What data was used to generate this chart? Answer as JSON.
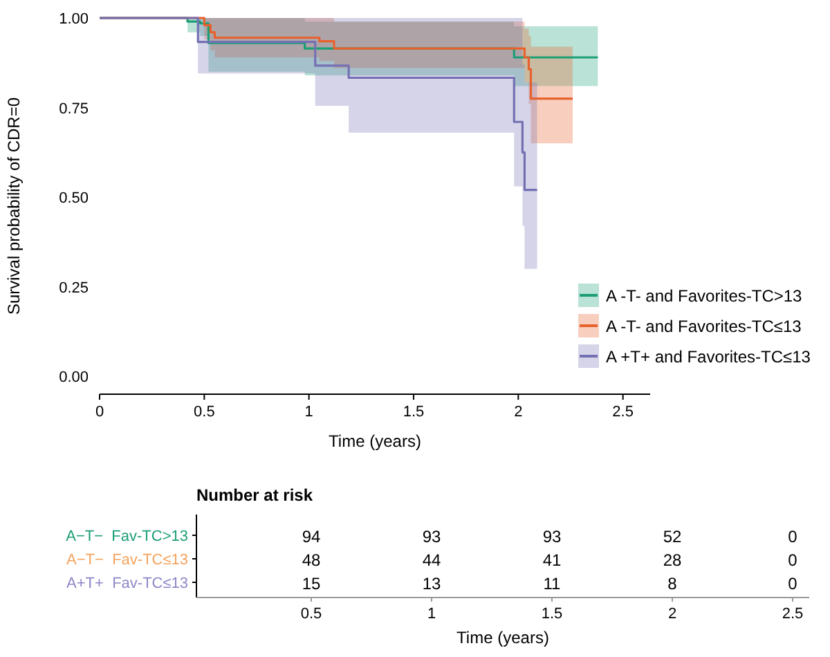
{
  "chart_data": [
    {
      "type": "step",
      "ylabel": "Survival probability of CDR=0",
      "xlabel": "Time (years)",
      "xlim": [
        0,
        2.63
      ],
      "ylim": [
        -0.05,
        1
      ],
      "xticks": [
        0,
        0.5,
        1,
        1.5,
        2,
        2.5
      ],
      "yticks": [
        {
          "value": 0,
          "label": "0.00"
        },
        {
          "value": 0.25,
          "label": "0.25"
        },
        {
          "value": 0.5,
          "label": "0.50"
        },
        {
          "value": 0.75,
          "label": "0.75"
        },
        {
          "value": 1,
          "label": "1.00"
        }
      ],
      "legend": "bottom right",
      "grid": false,
      "series": [
        {
          "name": "A -T- and Favorites-TC>13",
          "color": "#1b9e77",
          "x": [
            0,
            0.42,
            0.48,
            0.52,
            0.98,
            1.98,
            2.38
          ],
          "values": [
            1,
            0.99,
            0.985,
            0.93,
            0.915,
            0.89,
            0.89
          ],
          "lower": [
            1,
            0.96,
            0.95,
            0.85,
            0.84,
            0.81,
            0.81
          ],
          "upper": [
            1,
            1,
            1,
            1,
            0.99,
            0.977,
            0.977
          ]
        },
        {
          "name": "A -T- and Favorites-TC≤13",
          "color": "#e8612c",
          "x": [
            0,
            0.5,
            0.53,
            0.55,
            1.05,
            1.12,
            2.03,
            2.05,
            2.06,
            2.26
          ],
          "values": [
            1,
            0.98,
            0.96,
            0.945,
            0.935,
            0.915,
            0.89,
            0.857,
            0.775,
            0.775
          ],
          "lower": [
            1,
            0.94,
            0.91,
            0.89,
            0.88,
            0.86,
            0.82,
            0.76,
            0.65,
            0.65
          ],
          "upper": [
            1,
            1,
            1,
            1,
            1,
            0.99,
            0.97,
            0.95,
            0.92,
            0.92
          ]
        },
        {
          "name": "A +T+ and Favorites-TC≤13",
          "color": "#7570b3",
          "x": [
            0,
            0.47,
            1.03,
            1.19,
            1.98,
            2.02,
            2.03,
            2.09
          ],
          "values": [
            1,
            0.933,
            0.867,
            0.833,
            0.71,
            0.625,
            0.52,
            0.52
          ],
          "lower": [
            1,
            0.845,
            0.755,
            0.68,
            0.53,
            0.42,
            0.3,
            0.3
          ],
          "upper": [
            1,
            1,
            1,
            1,
            1,
            0.87,
            0.82,
            0.82
          ]
        }
      ]
    },
    {
      "type": "heatmap",
      "title": "Number at risk",
      "xlabel": "Time (years)",
      "categories": [
        "0.5",
        "1",
        "1.5",
        "2",
        "2.5"
      ],
      "y_categories": [
        "A−T−  Fav-TC>13",
        "A−T−  Fav-TC≤13",
        "A+T+  Fav-TC≤13"
      ],
      "colors": [
        "#1b9e77",
        "#f5a25d",
        "#8c87c8"
      ],
      "cells": [
        [
          94,
          93,
          93,
          52,
          0
        ],
        [
          48,
          44,
          41,
          28,
          0
        ],
        [
          15,
          13,
          11,
          8,
          0
        ]
      ],
      "data_labels": true
    }
  ]
}
